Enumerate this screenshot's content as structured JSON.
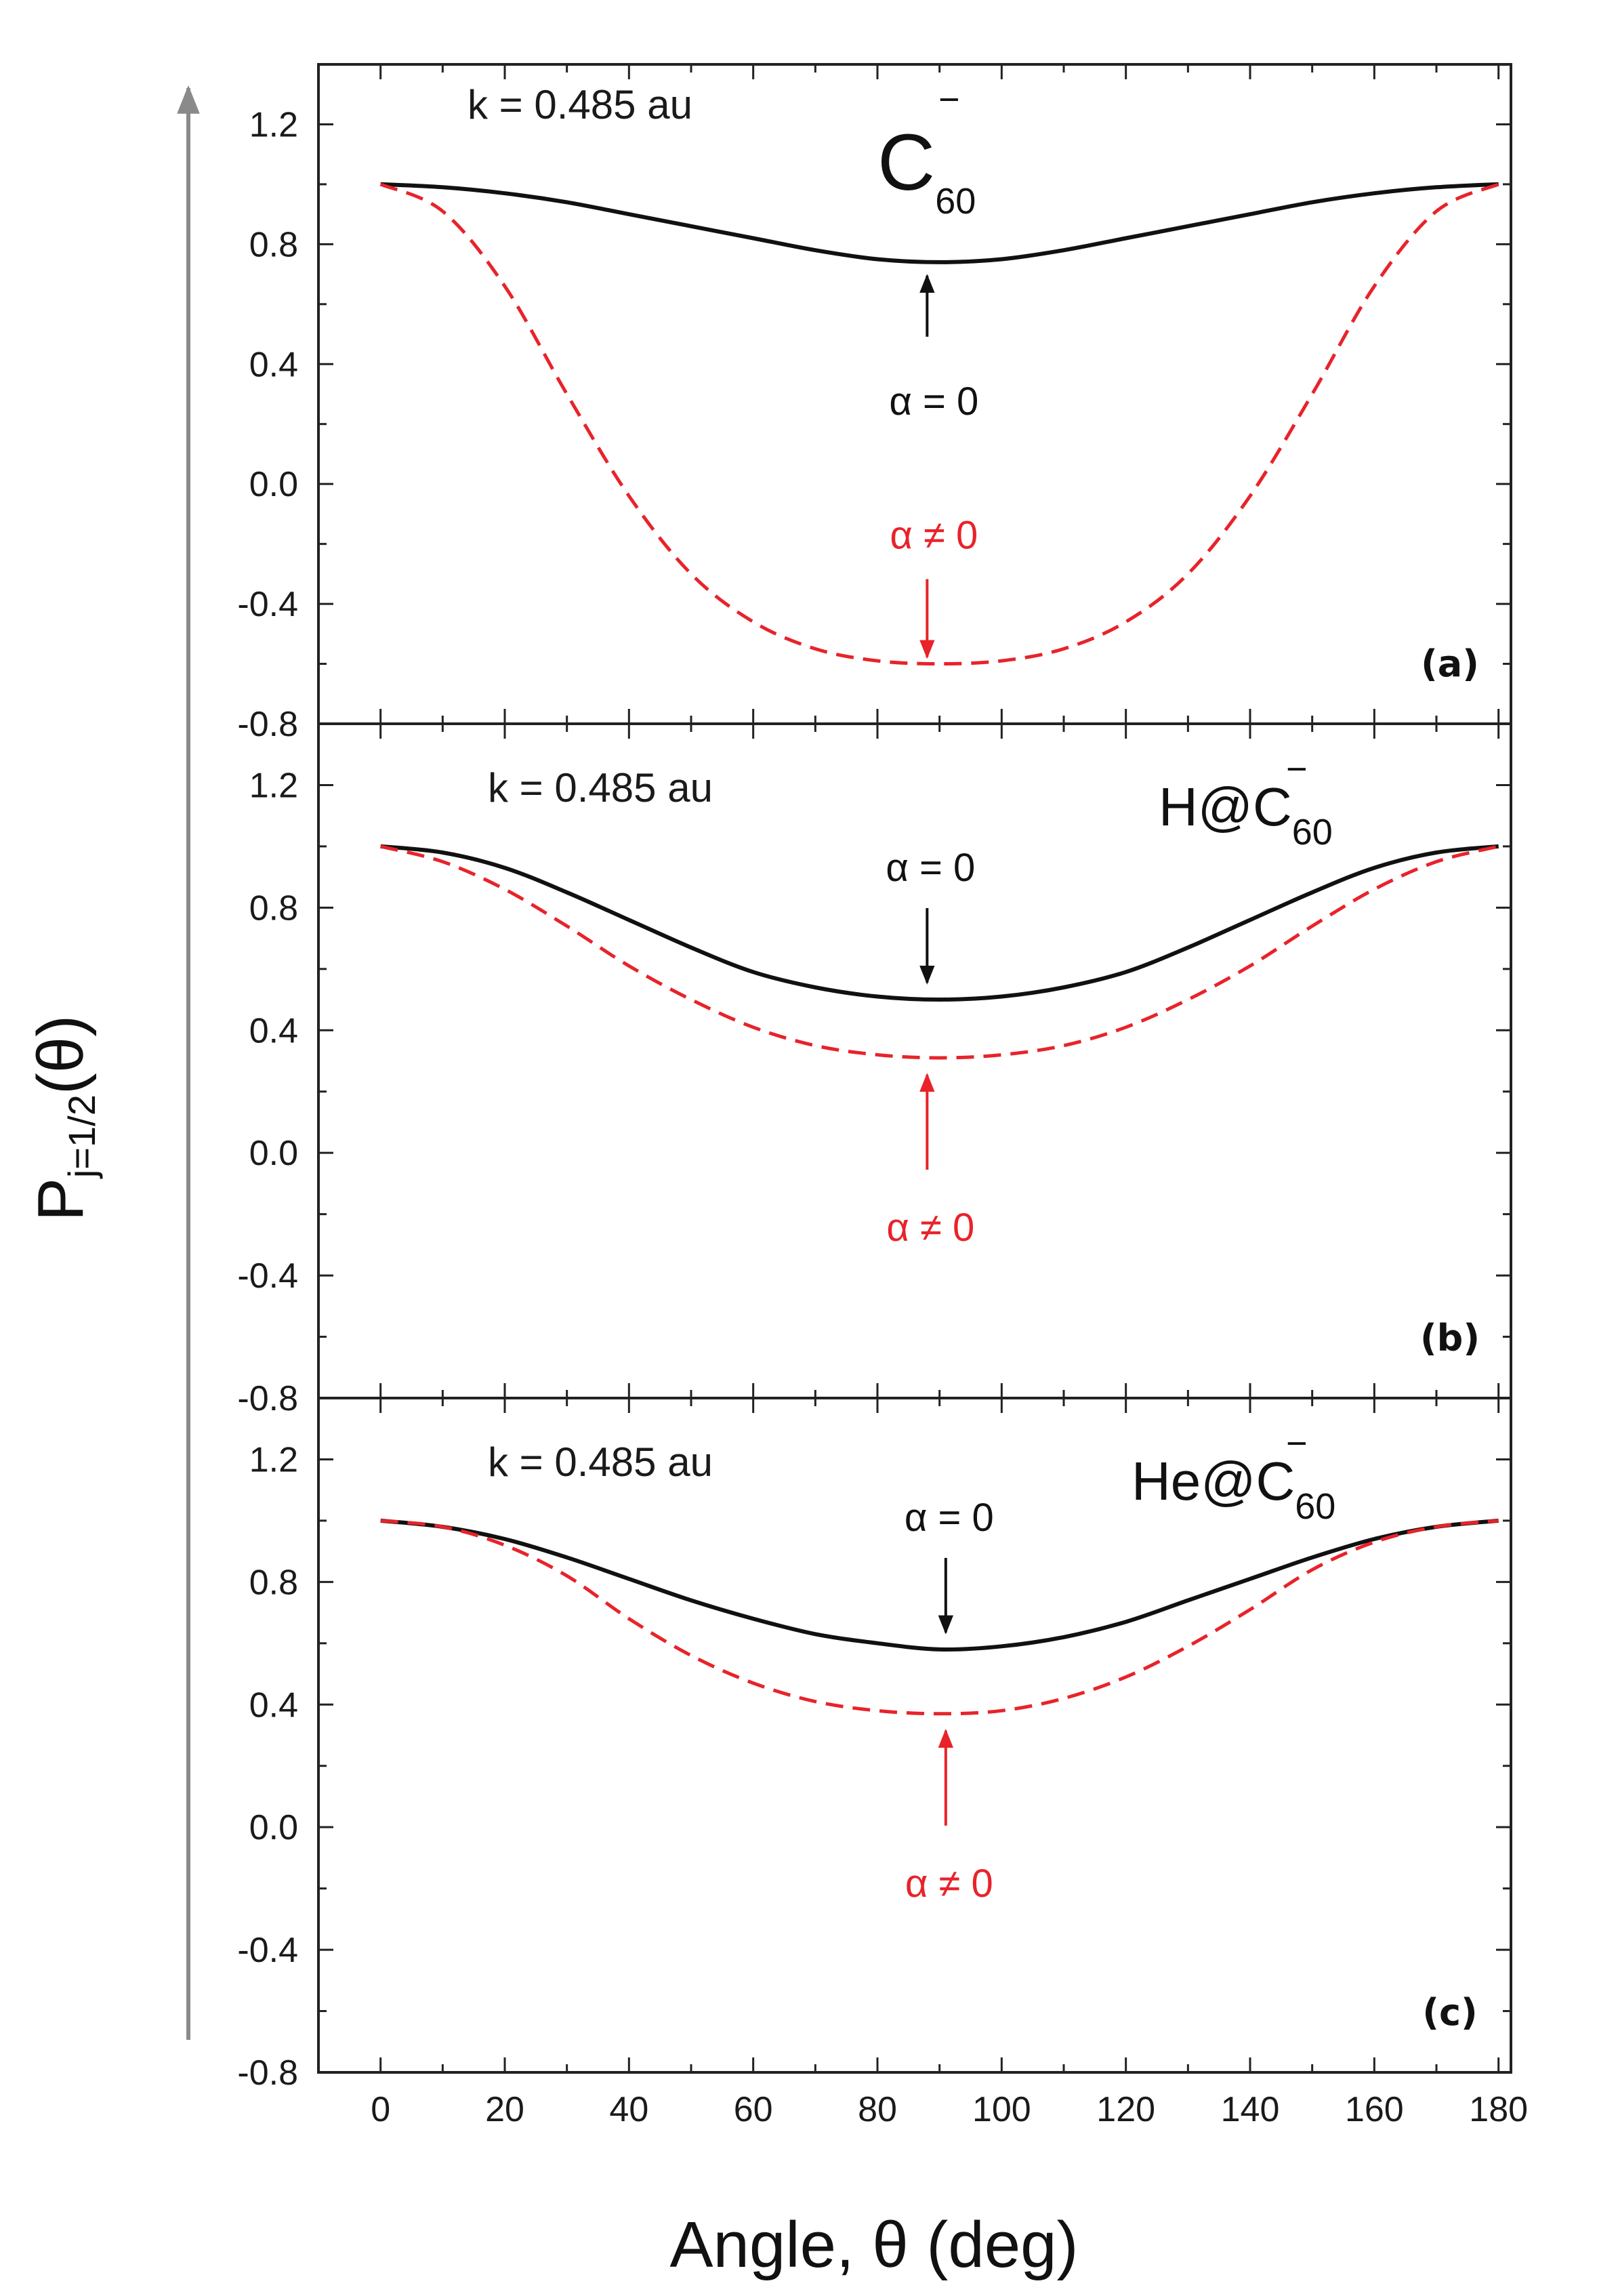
{
  "figure": {
    "ylabel_main": "P",
    "ylabel_sub": "j=1/2",
    "ylabel_tail": "(θ)",
    "xlabel": "Angle,  θ (deg)"
  },
  "colors": {
    "alpha_zero": "#111111",
    "alpha_nonzero": "#e8232a",
    "axes": "#222222"
  },
  "chart_data": [
    {
      "type": "line",
      "panel_label": "(a)",
      "k_text": "k = 0.485 au",
      "molecule": {
        "main": "C",
        "sub": "60",
        "sup": "−"
      },
      "xlim": [
        -10,
        182
      ],
      "ylim": [
        -0.8,
        1.4
      ],
      "xticks": [
        0,
        20,
        40,
        60,
        80,
        100,
        120,
        140,
        160,
        180
      ],
      "yticks": [
        -0.8,
        -0.4,
        0.0,
        0.4,
        0.8,
        1.2
      ],
      "ytick_labels": [
        "-0.8",
        "-0.4",
        "0.0",
        "0.4",
        "0.8",
        "1.2"
      ],
      "x": [
        0,
        10,
        20,
        30,
        40,
        50,
        60,
        70,
        80,
        90,
        100,
        110,
        120,
        130,
        140,
        150,
        160,
        170,
        180
      ],
      "series": [
        {
          "name": "α = 0",
          "style": "solid",
          "values": [
            1.0,
            0.99,
            0.97,
            0.94,
            0.9,
            0.86,
            0.82,
            0.78,
            0.75,
            0.74,
            0.75,
            0.78,
            0.82,
            0.86,
            0.9,
            0.94,
            0.97,
            0.99,
            1.0
          ]
        },
        {
          "name": "α ≠ 0",
          "style": "dashed",
          "values": [
            1.0,
            0.91,
            0.66,
            0.3,
            -0.04,
            -0.3,
            -0.46,
            -0.55,
            -0.59,
            -0.6,
            -0.59,
            -0.55,
            -0.46,
            -0.3,
            -0.04,
            0.3,
            0.66,
            0.91,
            1.0
          ]
        }
      ],
      "annotations": [
        {
          "text": "α = 0",
          "series": "α = 0",
          "arrow_to": [
            88,
            0.74
          ]
        },
        {
          "text": "α ≠ 0",
          "series": "α ≠ 0",
          "arrow_to": [
            88,
            -0.6
          ]
        }
      ]
    },
    {
      "type": "line",
      "panel_label": "(b)",
      "k_text": "k = 0.485 au",
      "molecule": {
        "main": "H@C",
        "sub": "60",
        "sup": "−"
      },
      "xlim": [
        -10,
        182
      ],
      "ylim": [
        -0.8,
        1.4
      ],
      "xticks": [
        0,
        20,
        40,
        60,
        80,
        100,
        120,
        140,
        160,
        180
      ],
      "yticks": [
        -0.8,
        -0.4,
        0.0,
        0.4,
        0.8,
        1.2
      ],
      "ytick_labels": [
        "-0.8",
        "-0.4",
        "0.0",
        "0.4",
        "0.8",
        "1.2"
      ],
      "x": [
        0,
        10,
        20,
        30,
        40,
        50,
        60,
        70,
        80,
        90,
        100,
        110,
        120,
        130,
        140,
        150,
        160,
        170,
        180
      ],
      "series": [
        {
          "name": "α = 0",
          "style": "solid",
          "values": [
            1.0,
            0.98,
            0.93,
            0.85,
            0.76,
            0.67,
            0.59,
            0.54,
            0.51,
            0.5,
            0.51,
            0.54,
            0.59,
            0.67,
            0.76,
            0.85,
            0.93,
            0.98,
            1.0
          ]
        },
        {
          "name": "α ≠ 0",
          "style": "dashed",
          "values": [
            1.0,
            0.95,
            0.86,
            0.74,
            0.61,
            0.5,
            0.41,
            0.35,
            0.32,
            0.31,
            0.32,
            0.35,
            0.41,
            0.5,
            0.61,
            0.74,
            0.86,
            0.95,
            1.0
          ]
        }
      ],
      "annotations": [
        {
          "text": "α = 0",
          "series": "α = 0",
          "arrow_to": [
            88,
            0.5
          ]
        },
        {
          "text": "α ≠ 0",
          "series": "α ≠ 0",
          "arrow_to": [
            88,
            0.31
          ]
        }
      ]
    },
    {
      "type": "line",
      "panel_label": "(c)",
      "k_text": "k = 0.485 au",
      "molecule": {
        "main": "He@C",
        "sub": "60",
        "sup": "−"
      },
      "xlim": [
        -10,
        182
      ],
      "ylim": [
        -0.8,
        1.4
      ],
      "xticks": [
        0,
        20,
        40,
        60,
        80,
        100,
        120,
        140,
        160,
        180
      ],
      "yticks": [
        -0.8,
        -0.4,
        0.0,
        0.4,
        0.8,
        1.2
      ],
      "ytick_labels": [
        "-0.8",
        "-0.4",
        "0.0",
        "0.4",
        "0.8",
        "1.2"
      ],
      "x": [
        0,
        10,
        20,
        30,
        40,
        50,
        60,
        70,
        80,
        90,
        100,
        110,
        120,
        130,
        140,
        150,
        160,
        170,
        180
      ],
      "series": [
        {
          "name": "α = 0",
          "style": "solid",
          "values": [
            1.0,
            0.98,
            0.94,
            0.88,
            0.81,
            0.74,
            0.68,
            0.63,
            0.6,
            0.58,
            0.59,
            0.62,
            0.67,
            0.74,
            0.81,
            0.88,
            0.94,
            0.98,
            1.0
          ]
        },
        {
          "name": "α ≠ 0",
          "style": "dashed",
          "values": [
            1.0,
            0.98,
            0.92,
            0.82,
            0.68,
            0.56,
            0.47,
            0.41,
            0.38,
            0.37,
            0.38,
            0.42,
            0.49,
            0.59,
            0.71,
            0.84,
            0.93,
            0.98,
            1.0
          ]
        }
      ],
      "annotations": [
        {
          "text": "α = 0",
          "series": "α = 0",
          "arrow_to": [
            91,
            0.58
          ]
        },
        {
          "text": "α ≠ 0",
          "series": "α ≠ 0",
          "arrow_to": [
            91,
            0.37
          ]
        }
      ]
    }
  ]
}
